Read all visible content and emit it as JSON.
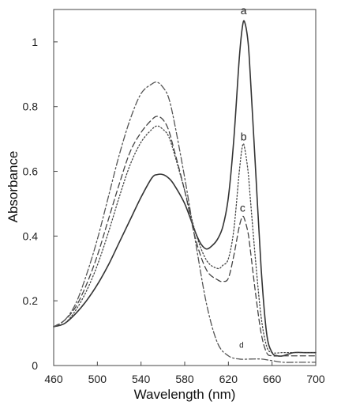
{
  "chart_data": {
    "type": "line",
    "title": "",
    "xlabel": "Wavelength (nm)",
    "ylabel": "Absorbance",
    "xlim": [
      460,
      700
    ],
    "ylim": [
      0,
      1.1
    ],
    "grid": false,
    "x_ticks": [
      460,
      500,
      540,
      580,
      620,
      660,
      700
    ],
    "x_tick_labels": [
      "460",
      "500",
      "540",
      "580",
      "620",
      "660",
      "700"
    ],
    "y_ticks": [
      0,
      0.2,
      0.4,
      0.6,
      0.8,
      1.0
    ],
    "y_tick_labels": [
      "0",
      "0.2",
      "0.4",
      "0.6",
      "0.8",
      "1"
    ],
    "series": [
      {
        "name": "a",
        "line_style": "solid",
        "color": "#333333",
        "x": [
          460,
          470,
          480,
          490,
          500,
          510,
          520,
          530,
          540,
          550,
          555,
          560,
          565,
          570,
          580,
          590,
          595,
          600,
          605,
          610,
          615,
          620,
          625,
          630,
          633,
          635,
          638,
          640,
          645,
          650,
          655,
          660,
          665,
          670,
          680,
          690,
          700
        ],
        "y": [
          0.12,
          0.13,
          0.16,
          0.2,
          0.25,
          0.31,
          0.38,
          0.45,
          0.52,
          0.58,
          0.59,
          0.59,
          0.58,
          0.56,
          0.5,
          0.41,
          0.375,
          0.36,
          0.37,
          0.39,
          0.43,
          0.52,
          0.7,
          0.95,
          1.05,
          1.06,
          1.0,
          0.9,
          0.6,
          0.3,
          0.1,
          0.04,
          0.03,
          0.03,
          0.04,
          0.04,
          0.04
        ]
      },
      {
        "name": "b",
        "line_style": "dotted",
        "color": "#444444",
        "x": [
          460,
          470,
          480,
          490,
          500,
          510,
          520,
          530,
          540,
          550,
          555,
          560,
          565,
          570,
          580,
          590,
          600,
          610,
          615,
          620,
          625,
          630,
          633,
          635,
          638,
          640,
          645,
          650,
          655,
          660,
          670,
          680,
          690,
          700
        ],
        "y": [
          0.12,
          0.13,
          0.17,
          0.23,
          0.31,
          0.41,
          0.52,
          0.62,
          0.69,
          0.73,
          0.74,
          0.73,
          0.71,
          0.66,
          0.54,
          0.41,
          0.325,
          0.3,
          0.31,
          0.33,
          0.42,
          0.6,
          0.68,
          0.67,
          0.6,
          0.52,
          0.32,
          0.15,
          0.06,
          0.04,
          0.04,
          0.04,
          0.04,
          0.04
        ]
      },
      {
        "name": "c",
        "line_style": "dashed",
        "color": "#444444",
        "x": [
          460,
          470,
          480,
          490,
          500,
          510,
          520,
          530,
          540,
          550,
          555,
          560,
          565,
          570,
          580,
          590,
          600,
          610,
          615,
          620,
          625,
          630,
          633,
          635,
          638,
          640,
          645,
          650,
          655,
          660,
          670,
          680,
          690,
          700
        ],
        "y": [
          0.12,
          0.14,
          0.18,
          0.25,
          0.34,
          0.45,
          0.56,
          0.66,
          0.72,
          0.76,
          0.77,
          0.76,
          0.73,
          0.67,
          0.54,
          0.39,
          0.295,
          0.265,
          0.26,
          0.27,
          0.34,
          0.43,
          0.46,
          0.45,
          0.41,
          0.36,
          0.22,
          0.1,
          0.04,
          0.03,
          0.03,
          0.03,
          0.03,
          0.03
        ]
      },
      {
        "name": "d",
        "line_style": "dash-dot",
        "color": "#555555",
        "x": [
          460,
          470,
          480,
          490,
          500,
          510,
          520,
          530,
          540,
          550,
          555,
          560,
          565,
          570,
          580,
          590,
          600,
          610,
          620,
          630,
          640,
          650,
          660,
          670,
          680,
          690,
          700
        ],
        "y": [
          0.12,
          0.14,
          0.19,
          0.28,
          0.39,
          0.52,
          0.65,
          0.76,
          0.84,
          0.87,
          0.875,
          0.86,
          0.83,
          0.76,
          0.58,
          0.38,
          0.19,
          0.07,
          0.03,
          0.02,
          0.02,
          0.02,
          0.015,
          0.01,
          0.01,
          0.01,
          0.01
        ]
      }
    ],
    "annotations": [
      {
        "text": "a",
        "x": 634,
        "y": 1.085,
        "size": 14
      },
      {
        "text": "b",
        "x": 634,
        "y": 0.695,
        "size": 14
      },
      {
        "text": "c",
        "x": 633,
        "y": 0.475,
        "size": 14
      },
      {
        "text": "d",
        "x": 632,
        "y": 0.055,
        "size": 10
      }
    ]
  }
}
